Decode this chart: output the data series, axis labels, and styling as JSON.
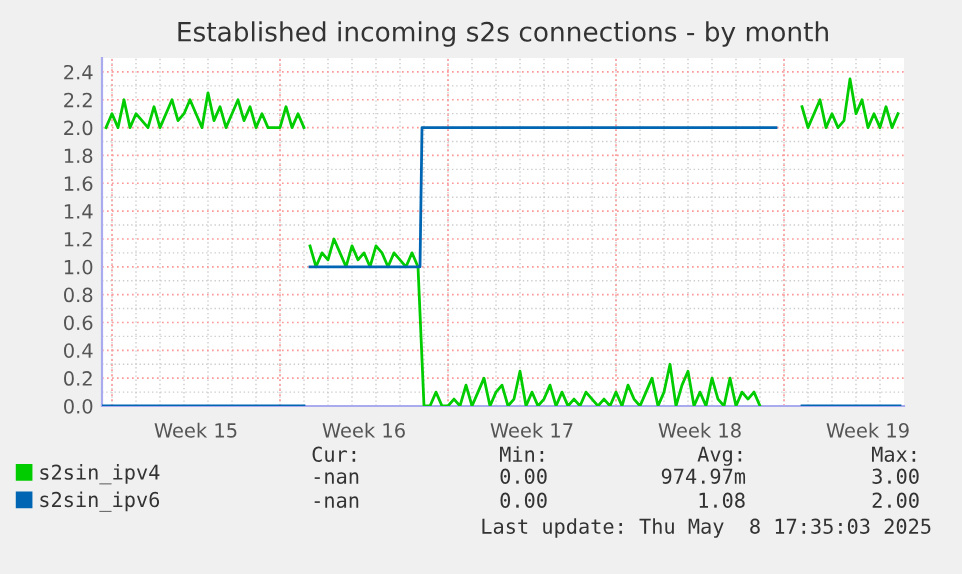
{
  "chart_data": {
    "type": "line",
    "title": "Established incoming s2s connections - by month",
    "xlim": [
      "2025-04-06T14:00",
      "2025-05-10T00:00"
    ],
    "xticks": [
      {
        "value": "2025-04-07",
        "label": null
      },
      {
        "value": "2025-04-10T12:00",
        "label": "Week 15"
      },
      {
        "value": "2025-04-14",
        "label": null
      },
      {
        "value": "2025-04-17T12:00",
        "label": "Week 16"
      },
      {
        "value": "2025-04-21",
        "label": null
      },
      {
        "value": "2025-04-24T12:00",
        "label": "Week 17"
      },
      {
        "value": "2025-04-28",
        "label": null
      },
      {
        "value": "2025-05-01T12:00",
        "label": "Week 18"
      },
      {
        "value": "2025-05-05",
        "label": null
      },
      {
        "value": "2025-05-08T12:00",
        "label": "Week 19"
      }
    ],
    "ylim": [
      0,
      2.5
    ],
    "yticks": [
      {
        "value": 0,
        "label": "0.0"
      },
      0.2,
      0.4,
      0.6,
      0.8,
      {
        "value": 1,
        "label": "1.0"
      },
      1.2,
      1.4,
      1.6,
      1.8,
      {
        "value": 2,
        "label": "2.0"
      },
      2.2,
      2.4
    ],
    "grid": true,
    "legend": "bottom left",
    "series": [
      {
        "name": "s2sin_ipv4",
        "color": "#00cc00",
        "x": [
          "2025-04-06T18:00",
          "2025-04-07T00:00",
          "2025-04-07T06:00",
          "2025-04-07T12:00",
          "2025-04-07T18:00",
          "2025-04-08T00:00",
          "2025-04-08T06:00",
          "2025-04-08T12:00",
          "2025-04-08T18:00",
          "2025-04-09T00:00",
          "2025-04-09T06:00",
          "2025-04-09T12:00",
          "2025-04-09T18:00",
          "2025-04-10T00:00",
          "2025-04-10T06:00",
          "2025-04-10T12:00",
          "2025-04-10T18:00",
          "2025-04-11T00:00",
          "2025-04-11T06:00",
          "2025-04-11T12:00",
          "2025-04-11T18:00",
          "2025-04-12T00:00",
          "2025-04-12T06:00",
          "2025-04-12T12:00",
          "2025-04-12T18:00",
          "2025-04-13T00:00",
          "2025-04-13T06:00",
          "2025-04-13T12:00",
          "2025-04-13T18:00",
          "2025-04-14T00:00",
          "2025-04-14T06:00",
          "2025-04-14T12:00",
          "2025-04-14T18:00",
          "2025-04-15T00:00",
          "2025-04-15T03:00",
          "2025-04-15T06:00",
          "2025-04-15T12:00",
          "2025-04-15T18:00",
          "2025-04-16T00:00",
          "2025-04-16T06:00",
          "2025-04-16T12:00",
          "2025-04-16T18:00",
          "2025-04-17T00:00",
          "2025-04-17T06:00",
          "2025-04-17T12:00",
          "2025-04-17T18:00",
          "2025-04-18T00:00",
          "2025-04-18T06:00",
          "2025-04-18T12:00",
          "2025-04-18T18:00",
          "2025-04-19T00:00",
          "2025-04-19T06:00",
          "2025-04-19T12:00",
          "2025-04-19T18:00",
          "2025-04-20T00:00",
          "2025-04-20T06:00",
          "2025-04-20T12:00",
          "2025-04-20T18:00",
          "2025-04-21T00:00",
          "2025-04-21T06:00",
          "2025-04-21T12:00",
          "2025-04-21T18:00",
          "2025-04-22T00:00",
          "2025-04-22T06:00",
          "2025-04-22T12:00",
          "2025-04-22T18:00",
          "2025-04-23T00:00",
          "2025-04-23T06:00",
          "2025-04-23T12:00",
          "2025-04-23T18:00",
          "2025-04-24T00:00",
          "2025-04-24T06:00",
          "2025-04-24T12:00",
          "2025-04-24T18:00",
          "2025-04-25T00:00",
          "2025-04-25T06:00",
          "2025-04-25T12:00",
          "2025-04-25T18:00",
          "2025-04-26T00:00",
          "2025-04-26T06:00",
          "2025-04-26T12:00",
          "2025-04-26T18:00",
          "2025-04-27T00:00",
          "2025-04-27T06:00",
          "2025-04-27T12:00",
          "2025-04-27T18:00",
          "2025-04-28T00:00",
          "2025-04-28T06:00",
          "2025-04-28T12:00",
          "2025-04-28T18:00",
          "2025-04-29T00:00",
          "2025-04-29T06:00",
          "2025-04-29T12:00",
          "2025-04-29T18:00",
          "2025-04-30T00:00",
          "2025-04-30T06:00",
          "2025-04-30T12:00",
          "2025-04-30T18:00",
          "2025-05-01T00:00",
          "2025-05-01T06:00",
          "2025-05-01T12:00",
          "2025-05-01T18:00",
          "2025-05-02T00:00",
          "2025-05-02T06:00",
          "2025-05-02T12:00",
          "2025-05-02T18:00",
          "2025-05-03T00:00",
          "2025-05-03T06:00",
          "2025-05-03T12:00",
          "2025-05-03T18:00",
          "2025-05-04T00:00",
          "2025-05-05T00:00",
          "2025-05-05T18:00",
          "2025-05-06T00:00",
          "2025-05-06T06:00",
          "2025-05-06T12:00",
          "2025-05-06T18:00",
          "2025-05-07T00:00",
          "2025-05-07T06:00",
          "2025-05-07T12:00",
          "2025-05-07T18:00",
          "2025-05-08T00:00",
          "2025-05-08T06:00",
          "2025-05-08T12:00",
          "2025-05-08T18:00",
          "2025-05-09T00:00",
          "2025-05-09T06:00",
          "2025-05-09T12:00",
          "2025-05-09T18:00"
        ],
        "values": [
          2.0,
          2.1,
          2.0,
          2.2,
          2.0,
          2.1,
          2.05,
          2.0,
          2.15,
          2.0,
          2.1,
          2.2,
          2.05,
          2.1,
          2.2,
          2.1,
          2.0,
          2.25,
          2.05,
          2.15,
          2.0,
          2.1,
          2.2,
          2.05,
          2.15,
          2.0,
          2.1,
          2.0,
          2.0,
          2.0,
          2.15,
          2.0,
          2.1,
          2.0,
          null,
          1.15,
          1.0,
          1.1,
          1.05,
          1.2,
          1.1,
          1.0,
          1.15,
          1.05,
          1.1,
          1.0,
          1.15,
          1.1,
          1.0,
          1.1,
          1.05,
          1.0,
          1.1,
          1.0,
          0,
          0,
          0.1,
          0,
          0,
          0.05,
          0,
          0.15,
          0,
          0.1,
          0.2,
          0,
          0.1,
          0.15,
          0,
          0.05,
          0.25,
          0,
          0.1,
          0,
          0.05,
          0.15,
          0,
          0.1,
          0,
          0.05,
          0,
          0.1,
          0.05,
          0,
          0.05,
          0,
          0.1,
          0,
          0.15,
          0.05,
          0,
          0.1,
          0.2,
          0,
          0.1,
          0.3,
          0,
          0.15,
          0.25,
          0,
          0.1,
          0,
          0.2,
          0.05,
          0,
          0.2,
          0,
          0.1,
          0.05,
          0.1,
          0,
          null,
          2.15,
          2.0,
          2.1,
          2.2,
          2.0,
          2.1,
          2.0,
          2.05,
          2.35,
          2.1,
          2.2,
          2.0,
          2.1,
          2.0,
          2.15,
          2.0,
          2.1
        ]
      },
      {
        "name": "s2sin_ipv6",
        "color": "#0066b3",
        "x": [
          "2025-04-06T14:00",
          "2025-04-15T00:00",
          "2025-04-15T03:00",
          "2025-04-15T06:00",
          "2025-04-19T20:00",
          "2025-04-19T22:00",
          "2025-05-04T16:00",
          "2025-05-05T00:00",
          "2025-05-05T18:00",
          "2025-05-09T20:00"
        ],
        "values": [
          0,
          0,
          null,
          1.0,
          1.0,
          2.0,
          2.0,
          null,
          0,
          0
        ]
      }
    ],
    "annotations": [
      "Cur:",
      "Min:",
      "Avg:",
      "Max:",
      "-nan",
      "0.00",
      "974.97m",
      "3.00",
      "-nan",
      "0.00",
      "1.08",
      "2.00",
      "Last update: Thu May  8 17:35:03 2025"
    ]
  }
}
